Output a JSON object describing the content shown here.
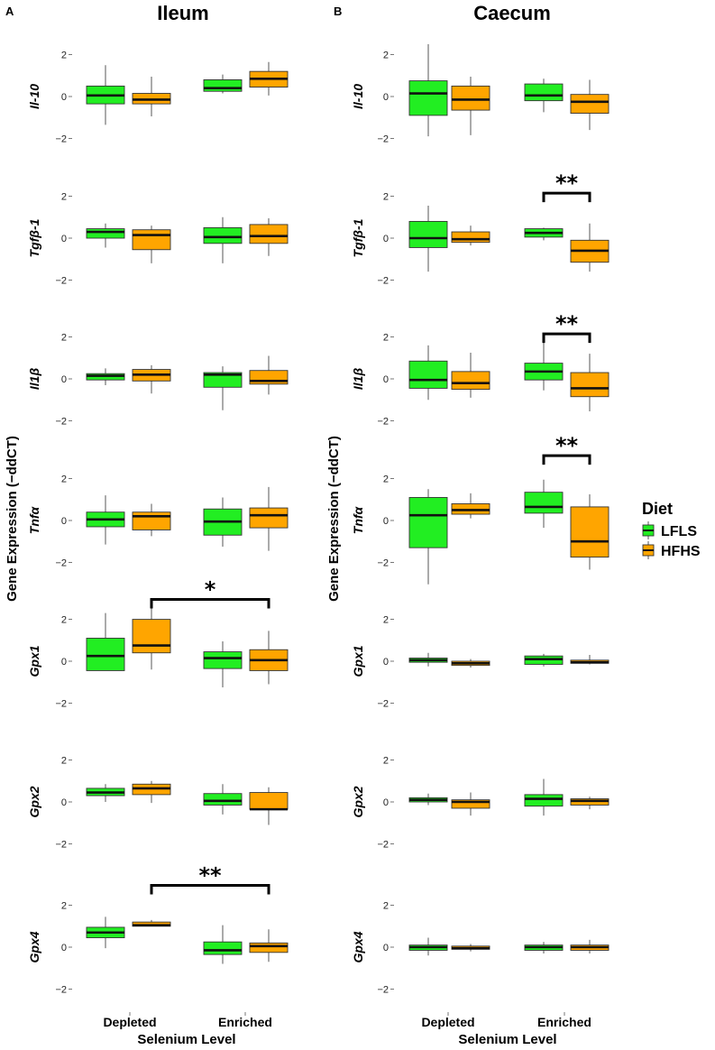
{
  "chart_data": {
    "type": "box",
    "y_ticks": [
      "2",
      "0",
      "−2"
    ],
    "ylim": [
      -2,
      2
    ],
    "ylabel": "Gene Expression (−ddCT)",
    "xlabel": "Selenium Level",
    "categories": [
      "Depleted",
      "Enriched"
    ],
    "legend": {
      "title": "Diet",
      "placement": "right",
      "entries": [
        {
          "name": "LFLS",
          "color": "#22EE22"
        },
        {
          "name": "HFHS",
          "color": "#FFA500"
        }
      ]
    },
    "panels": [
      {
        "letter": "A",
        "title": "Ileum",
        "genes": [
          {
            "name": "Il-10",
            "boxes": [
              {
                "cat": "Depleted",
                "diet": "LFLS",
                "min": -1.35,
                "q1": -0.35,
                "median": 0.05,
                "q3": 0.5,
                "max": 1.5
              },
              {
                "cat": "Depleted",
                "diet": "HFHS",
                "min": -0.95,
                "q1": -0.35,
                "median": -0.15,
                "q3": 0.15,
                "max": 0.95
              },
              {
                "cat": "Enriched",
                "diet": "LFLS",
                "min": 0.15,
                "q1": 0.25,
                "median": 0.4,
                "q3": 0.8,
                "max": 1.05
              },
              {
                "cat": "Enriched",
                "diet": "HFHS",
                "min": 0.05,
                "q1": 0.45,
                "median": 0.85,
                "q3": 1.2,
                "max": 1.65
              }
            ],
            "sig": []
          },
          {
            "name": "Tgfβ-1",
            "boxes": [
              {
                "cat": "Depleted",
                "diet": "LFLS",
                "min": -0.45,
                "q1": 0.0,
                "median": 0.3,
                "q3": 0.45,
                "max": 0.7
              },
              {
                "cat": "Depleted",
                "diet": "HFHS",
                "min": -1.2,
                "q1": -0.55,
                "median": 0.15,
                "q3": 0.4,
                "max": 0.6
              },
              {
                "cat": "Enriched",
                "diet": "LFLS",
                "min": -1.2,
                "q1": -0.25,
                "median": 0.05,
                "q3": 0.5,
                "max": 1.0
              },
              {
                "cat": "Enriched",
                "diet": "HFHS",
                "min": -0.85,
                "q1": -0.25,
                "median": 0.1,
                "q3": 0.65,
                "max": 0.95
              }
            ],
            "sig": []
          },
          {
            "name": "Il1β",
            "boxes": [
              {
                "cat": "Depleted",
                "diet": "LFLS",
                "min": -0.3,
                "q1": -0.05,
                "median": 0.15,
                "q3": 0.25,
                "max": 0.5
              },
              {
                "cat": "Depleted",
                "diet": "HFHS",
                "min": -0.7,
                "q1": -0.1,
                "median": 0.2,
                "q3": 0.45,
                "max": 0.65
              },
              {
                "cat": "Enriched",
                "diet": "LFLS",
                "min": -1.5,
                "q1": -0.4,
                "median": 0.2,
                "q3": 0.3,
                "max": 0.6
              },
              {
                "cat": "Enriched",
                "diet": "HFHS",
                "min": -0.75,
                "q1": -0.25,
                "median": -0.1,
                "q3": 0.4,
                "max": 1.1
              }
            ],
            "sig": []
          },
          {
            "name": "Tnfα",
            "boxes": [
              {
                "cat": "Depleted",
                "diet": "LFLS",
                "min": -1.15,
                "q1": -0.3,
                "median": 0.05,
                "q3": 0.4,
                "max": 1.2
              },
              {
                "cat": "Depleted",
                "diet": "HFHS",
                "min": -0.75,
                "q1": -0.45,
                "median": 0.2,
                "q3": 0.4,
                "max": 0.8
              },
              {
                "cat": "Enriched",
                "diet": "LFLS",
                "min": -1.25,
                "q1": -0.7,
                "median": -0.05,
                "q3": 0.55,
                "max": 1.1
              },
              {
                "cat": "Enriched",
                "diet": "HFHS",
                "min": -1.45,
                "q1": -0.35,
                "median": 0.25,
                "q3": 0.6,
                "max": 1.6
              }
            ],
            "sig": []
          },
          {
            "name": "Gpx1",
            "boxes": [
              {
                "cat": "Depleted",
                "diet": "LFLS",
                "min": -0.45,
                "q1": -0.45,
                "median": 0.25,
                "q3": 1.1,
                "max": 2.3
              },
              {
                "cat": "Depleted",
                "diet": "HFHS",
                "min": -0.4,
                "q1": 0.4,
                "median": 0.75,
                "q3": 2.0,
                "max": 2.9
              },
              {
                "cat": "Enriched",
                "diet": "LFLS",
                "min": -1.25,
                "q1": -0.35,
                "median": 0.15,
                "q3": 0.45,
                "max": 0.95
              },
              {
                "cat": "Enriched",
                "diet": "HFHS",
                "min": -1.1,
                "q1": -0.45,
                "median": 0.05,
                "q3": 0.55,
                "max": 1.45
              }
            ],
            "sig": [
              {
                "label": "*",
                "from": "Depleted-HFHS",
                "to": "Enriched-HFHS",
                "y": 2.95
              }
            ]
          },
          {
            "name": "Gpx2",
            "boxes": [
              {
                "cat": "Depleted",
                "diet": "LFLS",
                "min": 0.0,
                "q1": 0.3,
                "median": 0.45,
                "q3": 0.65,
                "max": 0.85
              },
              {
                "cat": "Depleted",
                "diet": "HFHS",
                "min": -0.05,
                "q1": 0.35,
                "median": 0.65,
                "q3": 0.85,
                "max": 1.0
              },
              {
                "cat": "Enriched",
                "diet": "LFLS",
                "min": -0.6,
                "q1": -0.15,
                "median": 0.05,
                "q3": 0.4,
                "max": 0.85
              },
              {
                "cat": "Enriched",
                "diet": "HFHS",
                "min": -1.1,
                "q1": -0.35,
                "median": -0.35,
                "q3": 0.45,
                "max": 0.7
              }
            ],
            "sig": []
          },
          {
            "name": "Gpx4",
            "boxes": [
              {
                "cat": "Depleted",
                "diet": "LFLS",
                "min": -0.05,
                "q1": 0.45,
                "median": 0.7,
                "q3": 0.95,
                "max": 1.45
              },
              {
                "cat": "Depleted",
                "diet": "HFHS",
                "min": 1.0,
                "q1": 1.0,
                "median": 1.05,
                "q3": 1.2,
                "max": 1.3
              },
              {
                "cat": "Enriched",
                "diet": "LFLS",
                "min": -0.8,
                "q1": -0.35,
                "median": -0.15,
                "q3": 0.25,
                "max": 1.05
              },
              {
                "cat": "Enriched",
                "diet": "HFHS",
                "min": -0.7,
                "q1": -0.25,
                "median": 0.05,
                "q3": 0.2,
                "max": 0.85
              }
            ],
            "sig": [
              {
                "label": "**",
                "from": "Depleted-HFHS",
                "to": "Enriched-HFHS",
                "y": 2.95
              }
            ]
          }
        ]
      },
      {
        "letter": "B",
        "title": "Caecum",
        "genes": [
          {
            "name": "Il-10",
            "boxes": [
              {
                "cat": "Depleted",
                "diet": "LFLS",
                "min": -1.9,
                "q1": -0.9,
                "median": 0.15,
                "q3": 0.75,
                "max": 2.5
              },
              {
                "cat": "Depleted",
                "diet": "HFHS",
                "min": -1.85,
                "q1": -0.65,
                "median": -0.15,
                "q3": 0.5,
                "max": 0.95
              },
              {
                "cat": "Enriched",
                "diet": "LFLS",
                "min": -0.75,
                "q1": -0.2,
                "median": 0.05,
                "q3": 0.6,
                "max": 0.85
              },
              {
                "cat": "Enriched",
                "diet": "HFHS",
                "min": -1.6,
                "q1": -0.8,
                "median": -0.25,
                "q3": 0.1,
                "max": 0.8
              }
            ],
            "sig": []
          },
          {
            "name": "Tgfβ-1",
            "boxes": [
              {
                "cat": "Depleted",
                "diet": "LFLS",
                "min": -1.6,
                "q1": -0.45,
                "median": 0.0,
                "q3": 0.8,
                "max": 1.55
              },
              {
                "cat": "Depleted",
                "diet": "HFHS",
                "min": -0.35,
                "q1": -0.2,
                "median": -0.05,
                "q3": 0.3,
                "max": 0.6
              },
              {
                "cat": "Enriched",
                "diet": "LFLS",
                "min": -0.1,
                "q1": 0.05,
                "median": 0.25,
                "q3": 0.45,
                "max": 0.5
              },
              {
                "cat": "Enriched",
                "diet": "HFHS",
                "min": -1.6,
                "q1": -1.15,
                "median": -0.6,
                "q3": -0.1,
                "max": 0.7
              }
            ],
            "sig": [
              {
                "label": "**",
                "from": "Enriched-LFLS",
                "to": "Enriched-HFHS",
                "y": 2.15
              }
            ]
          },
          {
            "name": "Il1β",
            "boxes": [
              {
                "cat": "Depleted",
                "diet": "LFLS",
                "min": -1.0,
                "q1": -0.45,
                "median": -0.05,
                "q3": 0.85,
                "max": 1.6
              },
              {
                "cat": "Depleted",
                "diet": "HFHS",
                "min": -0.9,
                "q1": -0.5,
                "median": -0.2,
                "q3": 0.35,
                "max": 1.25
              },
              {
                "cat": "Enriched",
                "diet": "LFLS",
                "min": -0.55,
                "q1": -0.05,
                "median": 0.35,
                "q3": 0.75,
                "max": 1.8
              },
              {
                "cat": "Enriched",
                "diet": "HFHS",
                "min": -1.55,
                "q1": -0.85,
                "median": -0.45,
                "q3": 0.3,
                "max": 1.2
              }
            ],
            "sig": [
              {
                "label": "**",
                "from": "Enriched-LFLS",
                "to": "Enriched-HFHS",
                "y": 2.15
              }
            ]
          },
          {
            "name": "Tnfα",
            "boxes": [
              {
                "cat": "Depleted",
                "diet": "LFLS",
                "min": -3.05,
                "q1": -1.3,
                "median": 0.25,
                "q3": 1.1,
                "max": 1.5
              },
              {
                "cat": "Depleted",
                "diet": "HFHS",
                "min": 0.1,
                "q1": 0.3,
                "median": 0.5,
                "q3": 0.8,
                "max": 1.3
              },
              {
                "cat": "Enriched",
                "diet": "LFLS",
                "min": -0.35,
                "q1": 0.35,
                "median": 0.65,
                "q3": 1.35,
                "max": 1.95
              },
              {
                "cat": "Enriched",
                "diet": "HFHS",
                "min": -2.35,
                "q1": -1.75,
                "median": -1.0,
                "q3": 0.65,
                "max": 1.25
              }
            ],
            "sig": [
              {
                "label": "**",
                "from": "Enriched-LFLS",
                "to": "Enriched-HFHS",
                "y": 3.1
              }
            ]
          },
          {
            "name": "Gpx1",
            "boxes": [
              {
                "cat": "Depleted",
                "diet": "LFLS",
                "min": -0.25,
                "q1": -0.05,
                "median": 0.05,
                "q3": 0.15,
                "max": 0.4
              },
              {
                "cat": "Depleted",
                "diet": "HFHS",
                "min": -0.3,
                "q1": -0.2,
                "median": -0.1,
                "q3": 0.0,
                "max": 0.1
              },
              {
                "cat": "Enriched",
                "diet": "LFLS",
                "min": -0.25,
                "q1": -0.15,
                "median": 0.1,
                "q3": 0.25,
                "max": 0.35
              },
              {
                "cat": "Enriched",
                "diet": "HFHS",
                "min": -0.15,
                "q1": -0.1,
                "median": -0.05,
                "q3": 0.05,
                "max": 0.3
              }
            ],
            "sig": []
          },
          {
            "name": "Gpx2",
            "boxes": [
              {
                "cat": "Depleted",
                "diet": "LFLS",
                "min": -0.15,
                "q1": 0.0,
                "median": 0.1,
                "q3": 0.2,
                "max": 0.4
              },
              {
                "cat": "Depleted",
                "diet": "HFHS",
                "min": -0.65,
                "q1": -0.3,
                "median": 0.0,
                "q3": 0.1,
                "max": 0.45
              },
              {
                "cat": "Enriched",
                "diet": "LFLS",
                "min": -0.65,
                "q1": -0.2,
                "median": 0.15,
                "q3": 0.35,
                "max": 1.1
              },
              {
                "cat": "Enriched",
                "diet": "HFHS",
                "min": -0.35,
                "q1": -0.15,
                "median": 0.05,
                "q3": 0.15,
                "max": 0.25
              }
            ],
            "sig": []
          },
          {
            "name": "Gpx4",
            "boxes": [
              {
                "cat": "Depleted",
                "diet": "LFLS",
                "min": -0.4,
                "q1": -0.15,
                "median": 0.0,
                "q3": 0.1,
                "max": 0.45
              },
              {
                "cat": "Depleted",
                "diet": "HFHS",
                "min": -0.2,
                "q1": -0.1,
                "median": -0.05,
                "q3": 0.05,
                "max": 0.15
              },
              {
                "cat": "Enriched",
                "diet": "LFLS",
                "min": -0.3,
                "q1": -0.15,
                "median": 0.0,
                "q3": 0.1,
                "max": 0.25
              },
              {
                "cat": "Enriched",
                "diet": "HFHS",
                "min": -0.3,
                "q1": -0.15,
                "median": 0.0,
                "q3": 0.1,
                "max": 0.35
              }
            ],
            "sig": []
          }
        ]
      }
    ]
  }
}
